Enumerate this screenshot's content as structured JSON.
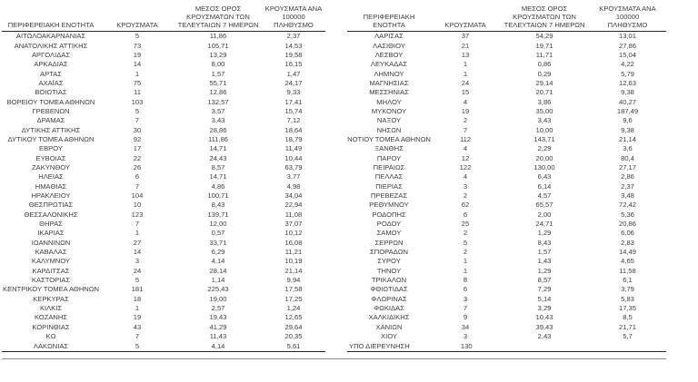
{
  "table": {
    "headers": {
      "region": "ΠΕΡΙΦΕΡΕΙΑΚΗ ΕΝΟΤΗΤΑ",
      "cases": "ΚΡΟΥΣΜΑΤΑ",
      "avg7_lines": [
        "ΜΕΣΟΣ ΟΡΟΣ",
        "ΚΡΟΥΣΜΑΤΩΝ ΤΩΝ",
        "ΤΕΛΕΥΤΑΙΩΝ 7 ΗΜΕΡΩΝ"
      ],
      "per100k_lines": [
        "ΚΡΟΥΣΜΑΤΑ ΑΝΑ 100000",
        "ΠΛΗΘΥΣΜΟ"
      ]
    },
    "left_aligned_row_names": [
      "ΥΠΟ ΔΙΕΡΕΥΝΗΣΗ"
    ],
    "left_rows": [
      [
        "ΑΙΤΩΛΟΑΚΑΡΝΑΝΙΑΣ",
        "5",
        "11,86",
        "2,37"
      ],
      [
        "ΑΝΑΤΟΛΙΚΗΣ ΑΤΤΙΚΗΣ",
        "73",
        "105,71",
        "14,53"
      ],
      [
        "ΑΡΓΟΛΙΔΑΣ",
        "19",
        "13,29",
        "19,58"
      ],
      [
        "ΑΡΚΑΔΙΑΣ",
        "14",
        "8,00",
        "16,15"
      ],
      [
        "ΑΡΤΑΣ",
        "1",
        "1,57",
        "1,47"
      ],
      [
        "ΑΧΑΪΑΣ",
        "75",
        "55,71",
        "24,17"
      ],
      [
        "ΒΟΙΩΤΙΑΣ",
        "11",
        "12,86",
        "9,33"
      ],
      [
        "ΒΟΡΕΙΟΥ ΤΟΜΕΑ ΑΘΗΝΩΝ",
        "103",
        "132,57",
        "17,41"
      ],
      [
        "ΓΡΕΒΕΝΩΝ",
        "5",
        "3,57",
        "15,74"
      ],
      [
        "ΔΡΑΜΑΣ",
        "7",
        "3,43",
        "7,12"
      ],
      [
        "ΔΥΤΙΚΗΣ ΑΤΤΙΚΗΣ",
        "30",
        "28,86",
        "18,64"
      ],
      [
        "ΔΥΤΙΚΟΥ ΤΟΜΕΑ ΑΘΗΝΩΝ",
        "92",
        "111,86",
        "18,79"
      ],
      [
        "ΕΒΡΟΥ",
        "17",
        "14,71",
        "11,49"
      ],
      [
        "ΕΥΒΟΙΑΣ",
        "22",
        "24,43",
        "10,44"
      ],
      [
        "ΖΑΚΥΝΘΟΥ",
        "26",
        "8,57",
        "63,79"
      ],
      [
        "ΗΛΕΙΑΣ",
        "6",
        "14,71",
        "3,77"
      ],
      [
        "ΗΜΑΘΙΑΣ",
        "7",
        "4,86",
        "4,98"
      ],
      [
        "ΗΡΑΚΛΕΙΟΥ",
        "104",
        "100,71",
        "34,04"
      ],
      [
        "ΘΕΣΠΡΩΤΙΑΣ",
        "10",
        "8,43",
        "22,94"
      ],
      [
        "ΘΕΣΣΑΛΟΝΙΚΗΣ",
        "123",
        "139,71",
        "11,08"
      ],
      [
        "ΘΗΡΑΣ",
        "7",
        "12,00",
        "37,07"
      ],
      [
        "ΙΚΑΡΙΑΣ",
        "1",
        "0,57",
        "10,12"
      ],
      [
        "ΙΩΑΝΝΙΝΩΝ",
        "27",
        "33,71",
        "16,08"
      ],
      [
        "ΚΑΒΑΛΑΣ",
        "14",
        "6,29",
        "11,21"
      ],
      [
        "ΚΑΛΥΜΝΟΥ",
        "3",
        "4,14",
        "10,19"
      ],
      [
        "ΚΑΡΔΙΤΣΑΣ",
        "24",
        "28,14",
        "21,14"
      ],
      [
        "ΚΑΣΤΟΡΙΑΣ",
        "5",
        "1,14",
        "9,94"
      ],
      [
        "ΚΕΝΤΡΙΚΟΥ ΤΟΜΕΑ ΑΘΗΝΩΝ",
        "181",
        "225,43",
        "17,58"
      ],
      [
        "ΚΕΡΚΥΡΑΣ",
        "18",
        "19,00",
        "17,25"
      ],
      [
        "ΚΙΛΚΙΣ",
        "1",
        "2,57",
        "1,24"
      ],
      [
        "ΚΟΖΑΝΗΣ",
        "19",
        "19,43",
        "12,65"
      ],
      [
        "ΚΟΡΙΝΘΙΑΣ",
        "43",
        "41,29",
        "29,64"
      ],
      [
        "ΚΩ",
        "7",
        "11,43",
        "20,35"
      ],
      [
        "ΛΑΚΩΝΙΑΣ",
        "5",
        "4,14",
        "5,61"
      ]
    ],
    "right_rows": [
      [
        "ΛΑΡΙΣΑΣ",
        "37",
        "54,29",
        "13,01"
      ],
      [
        "ΛΑΣΙΘΙΟΥ",
        "21",
        "19,71",
        "27,86"
      ],
      [
        "ΛΕΣΒΟΥ",
        "13",
        "11,71",
        "15,04"
      ],
      [
        "ΛΕΥΚΑΔΑΣ",
        "1",
        "0,86",
        "4,22"
      ],
      [
        "ΛΗΜΝΟΥ",
        "1",
        "0,29",
        "5,79"
      ],
      [
        "ΜΑΓΝΗΣΙΑΣ",
        "24",
        "29,14",
        "12,63"
      ],
      [
        "ΜΕΣΣΗΝΙΑΣ",
        "15",
        "20,71",
        "9,38"
      ],
      [
        "ΜΗΛΟΥ",
        "4",
        "3,86",
        "40,27"
      ],
      [
        "ΜΥΚΟΝΟΥ",
        "19",
        "35,00",
        "187,49"
      ],
      [
        "ΝΑΞΟΥ",
        "2",
        "3,43",
        "9,6"
      ],
      [
        "ΝΗΣΩΝ",
        "7",
        "10,00",
        "9,38"
      ],
      [
        "ΝΟΤΙΟΥ ΤΟΜΕΑ ΑΘΗΝΩΝ",
        "112",
        "143,71",
        "21,14"
      ],
      [
        "ΞΑΝΘΗΣ",
        "4",
        "2,29",
        "3,6"
      ],
      [
        "ΠΑΡΟΥ",
        "12",
        "20,00",
        "80,4"
      ],
      [
        "ΠΕΙΡΑΙΩΣ",
        "122",
        "130,00",
        "27,17"
      ],
      [
        "ΠΕΛΛΑΣ",
        "4",
        "6,43",
        "2,86"
      ],
      [
        "ΠΙΕΡΙΑΣ",
        "3",
        "6,14",
        "2,37"
      ],
      [
        "ΠΡΕΒΕΖΑΣ",
        "2",
        "4,57",
        "3,48"
      ],
      [
        "ΡΕΘΥΜΝΟΥ",
        "62",
        "65,57",
        "72,42"
      ],
      [
        "ΡΟΔΟΠΗΣ",
        "6",
        "2,00",
        "5,36"
      ],
      [
        "ΡΟΔΟΥ",
        "25",
        "24,71",
        "20,86"
      ],
      [
        "ΣΑΜΟΥ",
        "2",
        "1,29",
        "6,06"
      ],
      [
        "ΣΕΡΡΩΝ",
        "5",
        "8,43",
        "2,83"
      ],
      [
        "ΣΠΟΡΑΔΩΝ",
        "2",
        "1,57",
        "14,49"
      ],
      [
        "ΣΥΡΟΥ",
        "1",
        "1,43",
        "4,65"
      ],
      [
        "ΤΗΝΟΥ",
        "1",
        "1,29",
        "11,58"
      ],
      [
        "ΤΡΙΚΑΛΩΝ",
        "8",
        "8,57",
        "6,1"
      ],
      [
        "ΦΘΙΩΤΙΔΑΣ",
        "6",
        "7,29",
        "3,79"
      ],
      [
        "ΦΛΩΡΙΝΑΣ",
        "3",
        "5,14",
        "5,83"
      ],
      [
        "ΦΩΚΙΔΑΣ",
        "7",
        "3,29",
        "17,35"
      ],
      [
        "ΧΑΛΚΙΔΙΚΗΣ",
        "9",
        "10,43",
        "8,5"
      ],
      [
        "ΧΑΝΙΩΝ",
        "34",
        "39,43",
        "21,71"
      ],
      [
        "ΧΙΟΥ",
        "3",
        "2,43",
        "5,7"
      ],
      [
        "ΥΠΟ ΔΙΕΡΕΥΝΗΣΗ",
        "130",
        "",
        ""
      ]
    ],
    "colors": {
      "text": "#3d3d3d",
      "table_border": "#262626",
      "bottom_rule": "#8c8c8c"
    }
  }
}
